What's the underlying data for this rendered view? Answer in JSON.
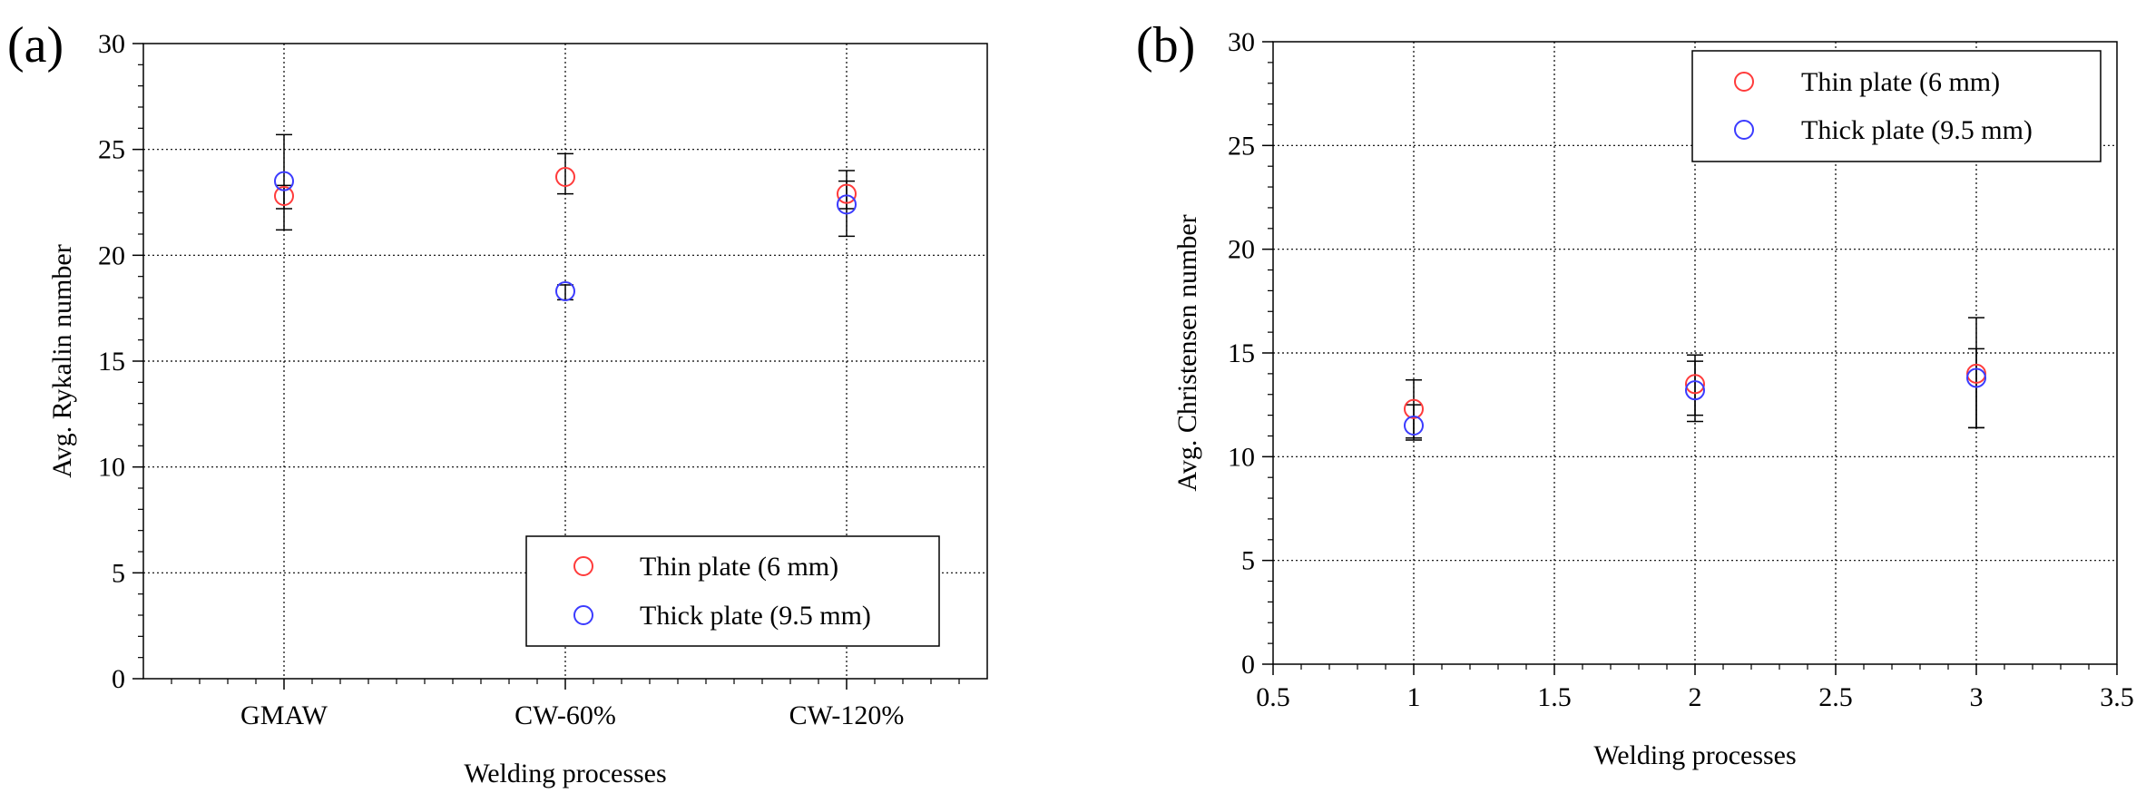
{
  "chart_data": [
    {
      "panel_label": "(a)",
      "type": "scatter",
      "xlabel": "Welding processes",
      "ylabel": "Avg. Rykalin number",
      "x_tick_labels": [
        "GMAW",
        "CW-60%",
        "CW-120%"
      ],
      "x": [
        1,
        2,
        3
      ],
      "xlim": [
        0.5,
        3.5
      ],
      "ylim": [
        0,
        30
      ],
      "y_ticks": [
        0,
        5,
        10,
        15,
        20,
        25,
        30
      ],
      "grid": true,
      "legend_position": "bottom-right",
      "series": [
        {
          "name": "Thin plate (6 mm)",
          "color": "#ff3b3b",
          "marker": "open-circle",
          "values": [
            22.8,
            23.7,
            22.9
          ],
          "err_low": [
            21.2,
            22.9,
            22.2
          ],
          "err_high": [
            23.3,
            24.8,
            24.0
          ]
        },
        {
          "name": "Thick plate (9.5 mm)",
          "color": "#3b3bff",
          "marker": "open-circle",
          "values": [
            23.5,
            18.3,
            22.4
          ],
          "err_low": [
            22.2,
            17.9,
            20.9
          ],
          "err_high": [
            25.7,
            18.6,
            23.5
          ]
        }
      ]
    },
    {
      "panel_label": "(b)",
      "type": "scatter",
      "xlabel": "Welding processes",
      "ylabel": "Avg. Christensen number",
      "x_ticks": [
        0.5,
        1,
        1.5,
        2,
        2.5,
        3,
        3.5
      ],
      "x": [
        1,
        2,
        3
      ],
      "xlim": [
        0.5,
        3.5
      ],
      "ylim": [
        0,
        30
      ],
      "y_ticks": [
        0,
        5,
        10,
        15,
        20,
        25,
        30
      ],
      "grid": true,
      "legend_position": "top-right",
      "series": [
        {
          "name": "Thin plate (6 mm)",
          "color": "#ff3b3b",
          "marker": "open-circle",
          "values": [
            12.3,
            13.5,
            14.0
          ],
          "err_low": [
            10.9,
            12.0,
            11.4
          ],
          "err_high": [
            13.7,
            14.9,
            15.2
          ]
        },
        {
          "name": "Thick plate (9.5 mm)",
          "color": "#3b3bff",
          "marker": "open-circle",
          "values": [
            11.5,
            13.2,
            13.8
          ],
          "err_low": [
            10.8,
            11.7,
            11.4
          ],
          "err_high": [
            12.5,
            14.6,
            16.7
          ]
        }
      ]
    }
  ]
}
